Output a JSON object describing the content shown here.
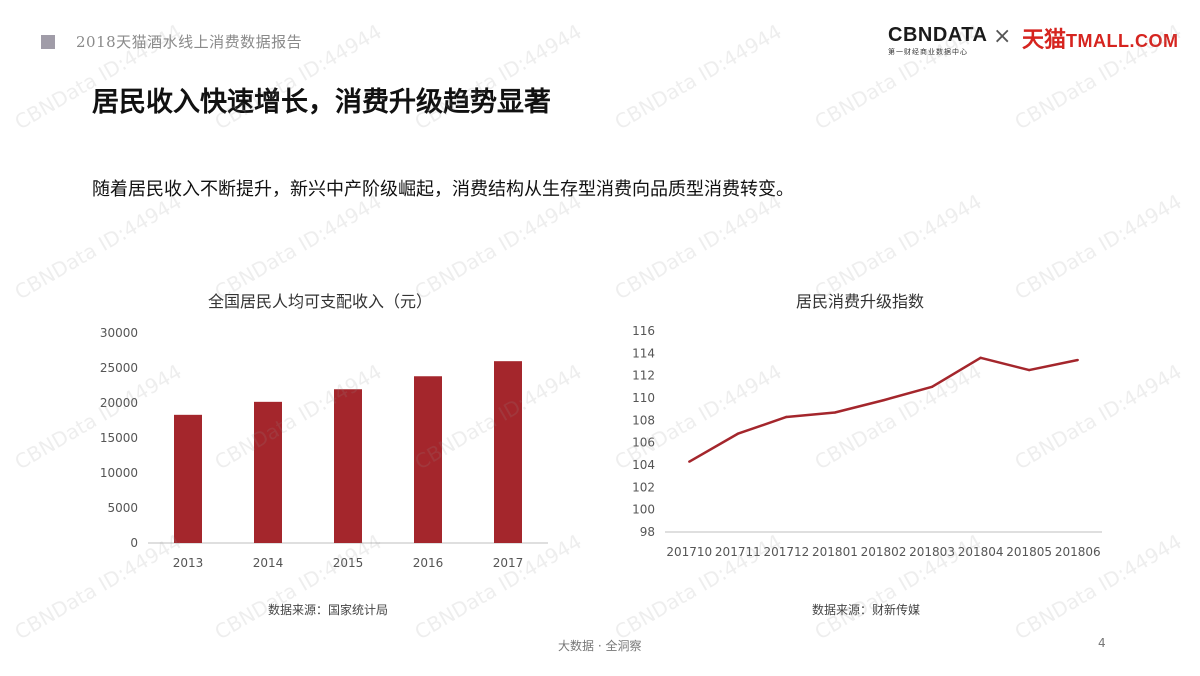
{
  "header": {
    "report_title": "2018天猫酒水线上消费数据报告",
    "logo_cbndata": "CBNDATA",
    "logo_cbndata_sub": "第一财经商业数据中心",
    "logo_times": "×",
    "logo_tmall_cn": "天猫",
    "logo_tmall_en": "TMALL.COM",
    "brand_red": "#d6241f"
  },
  "headline": "居民收入快速增长，消费升级趋势显著",
  "subtext": "随着居民收入不断提升，新兴中产阶级崛起，消费结构从生存型消费向品质型消费转变。",
  "watermark": "CBNData ID:44944",
  "footer": {
    "tagline": "大数据 · 全洞察",
    "page_number": "4"
  },
  "chart_data": [
    {
      "type": "bar",
      "title": "全国居民人均可支配收入（元）",
      "categories": [
        "2013",
        "2014",
        "2015",
        "2016",
        "2017"
      ],
      "values": [
        18311,
        20167,
        21966,
        23821,
        25974
      ],
      "ylim": [
        0,
        30000
      ],
      "yticks": [
        "0",
        "5000",
        "10000",
        "15000",
        "20000",
        "25000",
        "30000"
      ],
      "color": "#a4262c",
      "grid": false,
      "source": "数据来源：国家统计局"
    },
    {
      "type": "line",
      "title": "居民消费升级指数",
      "categories": [
        "201710",
        "201711",
        "201712",
        "201801",
        "201802",
        "201803",
        "201804",
        "201805",
        "201806"
      ],
      "values": [
        104.3,
        106.8,
        108.3,
        108.7,
        109.8,
        111.0,
        113.6,
        112.5,
        113.4
      ],
      "ylim": [
        98,
        116
      ],
      "yticks": [
        "98",
        "100",
        "102",
        "104",
        "106",
        "108",
        "110",
        "112",
        "114",
        "116"
      ],
      "color": "#a4262c",
      "grid": false,
      "source": "数据来源：财新传媒"
    }
  ]
}
